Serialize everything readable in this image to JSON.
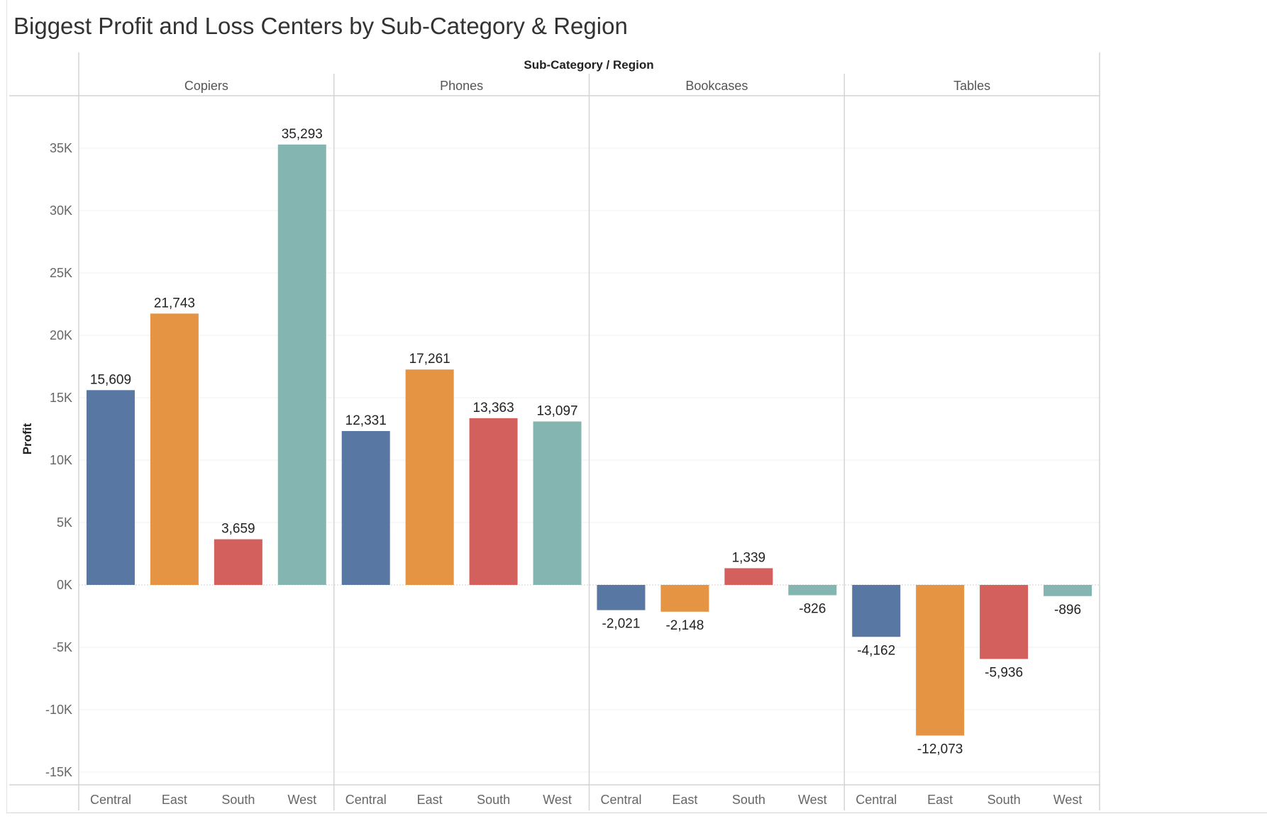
{
  "title": "Biggest Profit and Loss Centers by Sub-Category & Region",
  "chart_data": {
    "type": "bar",
    "title": "Biggest Profit and Loss Centers by Sub-Category & Region",
    "column_header": "Sub-Category / Region",
    "ylabel": "Profit",
    "xlabel": "",
    "ylim": [
      -15500,
      38000
    ],
    "yticks": [
      35000,
      30000,
      25000,
      20000,
      15000,
      10000,
      5000,
      0,
      -5000,
      -10000,
      -15000
    ],
    "ytick_labels": [
      "35K",
      "30K",
      "25K",
      "20K",
      "15K",
      "10K",
      "5K",
      "0K",
      "-5K",
      "-10K",
      "-15K"
    ],
    "grid": true,
    "groups": [
      "Copiers",
      "Phones",
      "Bookcases",
      "Tables"
    ],
    "categories": [
      "Central",
      "East",
      "South",
      "West"
    ],
    "colors": {
      "Central": "#5977a3",
      "East": "#e49443",
      "South": "#d4605e",
      "West": "#85b5b1"
    },
    "values": {
      "Copiers": [
        15609,
        21743,
        3659,
        35293
      ],
      "Phones": [
        12331,
        17261,
        13363,
        13097
      ],
      "Bookcases": [
        -2021,
        -2148,
        1339,
        -826
      ],
      "Tables": [
        -4162,
        -12073,
        -5936,
        -896
      ]
    },
    "value_labels": {
      "Copiers": [
        "15,609",
        "21,743",
        "3,659",
        "35,293"
      ],
      "Phones": [
        "12,331",
        "17,261",
        "13,363",
        "13,097"
      ],
      "Bookcases": [
        "-2,021",
        "-2,148",
        "1,339",
        "-826"
      ],
      "Tables": [
        "-4,162",
        "-12,073",
        "-5,936",
        "-896"
      ]
    }
  }
}
